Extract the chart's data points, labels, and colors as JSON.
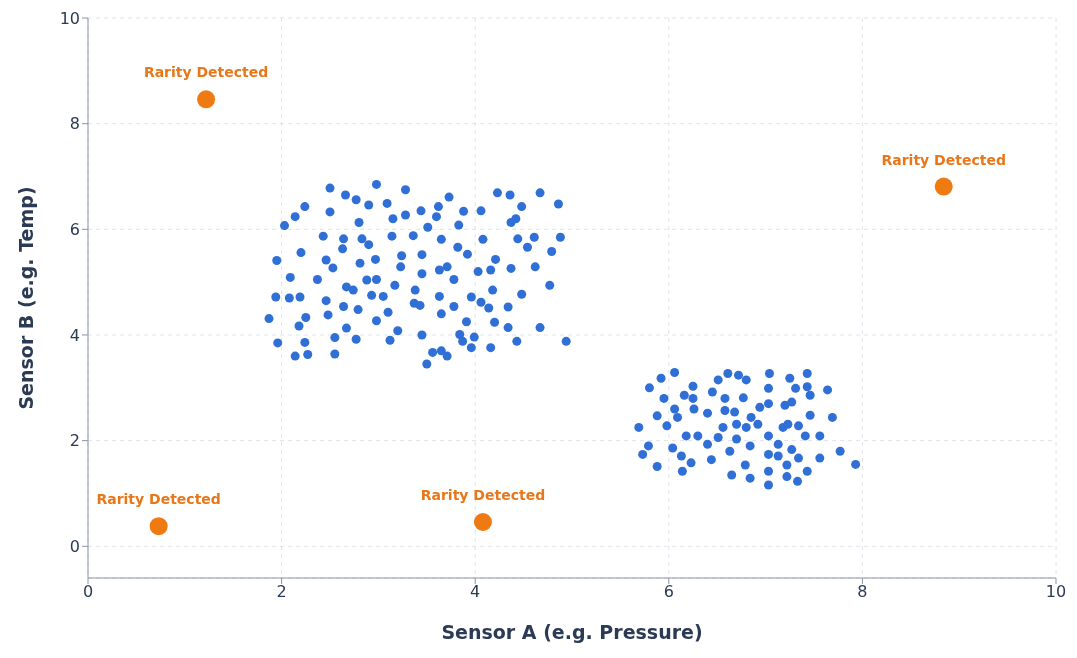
{
  "chart_data": {
    "type": "scatter",
    "xlabel": "Sensor A (e.g. Pressure)",
    "ylabel": "Sensor B (e.g. Temp)",
    "xlim": [
      0,
      10
    ],
    "ylim": [
      -0.6,
      10
    ],
    "xticks": [
      0,
      2,
      4,
      6,
      8,
      10
    ],
    "yticks": [
      0,
      2,
      4,
      6,
      8,
      10
    ],
    "grid": true,
    "marker": "circle",
    "series": [
      {
        "color": "#2f6fd6",
        "x": [
          2.5,
          2.98,
          3.28,
          2.66,
          2.77,
          2.9,
          3.09,
          2.24,
          2.14,
          2.03,
          2.5,
          2.8,
          3.15,
          3.28,
          3.44,
          3.62,
          3.73,
          3.6,
          3.51,
          3.88,
          4.06,
          3.83,
          4.23,
          4.36,
          4.67,
          4.86,
          4.48,
          4.42,
          4.37,
          2.43,
          2.64,
          2.83,
          2.9,
          3.14,
          3.36,
          3.65,
          3.82,
          3.92,
          4.08,
          4.44,
          4.61,
          4.88,
          4.54,
          4.79,
          2.2,
          1.95,
          2.63,
          2.46,
          2.53,
          2.81,
          2.97,
          3.24,
          3.45,
          3.23,
          3.45,
          3.63,
          3.71,
          4.21,
          4.37,
          4.62,
          4.03,
          4.16,
          2.09,
          2.37,
          2.88,
          2.98,
          3.17,
          3.78,
          4.77,
          2.67,
          2.74,
          3.38,
          4.18,
          1.94,
          2.08,
          2.19,
          2.46,
          2.93,
          3.05,
          3.63,
          3.96,
          4.48,
          3.37,
          3.43,
          4.06,
          4.14,
          2.64,
          2.79,
          3.1,
          3.78,
          4.34,
          1.87,
          2.25,
          2.18,
          2.48,
          2.98,
          3.65,
          3.91,
          4.2,
          4.34,
          4.67,
          2.67,
          3.2,
          1.96,
          2.24,
          2.55,
          2.77,
          3.12,
          3.45,
          3.84,
          3.99,
          3.87,
          4.16,
          4.43,
          4.94,
          3.96,
          2.14,
          2.27,
          2.55,
          3.56,
          3.65,
          3.71,
          3.5
        ],
        "values": [
          6.78,
          6.85,
          6.75,
          6.65,
          6.56,
          6.46,
          6.49,
          6.43,
          6.24,
          6.07,
          6.33,
          6.13,
          6.2,
          6.27,
          6.35,
          6.43,
          6.61,
          6.24,
          6.04,
          6.34,
          6.35,
          6.08,
          6.69,
          6.65,
          6.69,
          6.48,
          6.43,
          6.2,
          6.13,
          5.87,
          5.82,
          5.82,
          5.71,
          5.87,
          5.88,
          5.81,
          5.66,
          5.53,
          5.81,
          5.82,
          5.85,
          5.85,
          5.66,
          5.58,
          5.56,
          5.41,
          5.63,
          5.42,
          5.27,
          5.36,
          5.43,
          5.5,
          5.52,
          5.29,
          5.16,
          5.23,
          5.29,
          5.43,
          5.26,
          5.29,
          5.2,
          5.23,
          5.09,
          5.05,
          5.04,
          5.05,
          4.94,
          5.05,
          4.94,
          4.91,
          4.85,
          4.85,
          4.85,
          4.72,
          4.7,
          4.72,
          4.65,
          4.75,
          4.73,
          4.73,
          4.72,
          4.77,
          4.6,
          4.56,
          4.62,
          4.51,
          4.54,
          4.48,
          4.43,
          4.54,
          4.53,
          4.31,
          4.33,
          4.17,
          4.38,
          4.27,
          4.4,
          4.25,
          4.24,
          4.14,
          4.14,
          4.13,
          4.08,
          3.85,
          3.86,
          3.95,
          3.92,
          3.9,
          4.0,
          4.01,
          3.96,
          3.88,
          3.76,
          3.88,
          3.88,
          3.76,
          3.6,
          3.63,
          3.64,
          3.67,
          3.7,
          3.6,
          3.45
        ]
      },
      {
        "color": "#2f6fd6",
        "x": [
          6.06,
          5.92,
          5.8,
          5.95,
          6.16,
          6.25,
          6.25,
          6.06,
          5.88,
          5.98,
          6.09,
          5.69,
          5.79,
          5.73,
          5.88,
          6.04,
          6.18,
          6.26,
          6.3,
          6.13,
          6.23,
          6.14,
          6.44,
          6.4,
          6.45,
          6.51,
          6.61,
          6.72,
          6.8,
          6.58,
          6.77,
          6.4,
          6.58,
          6.68,
          6.85,
          6.94,
          6.56,
          6.7,
          6.8,
          6.92,
          6.51,
          6.7,
          6.84,
          6.63,
          6.65,
          6.79,
          6.84,
          7.04,
          7.03,
          7.03,
          7.2,
          7.27,
          7.25,
          7.31,
          7.43,
          7.43,
          7.46,
          7.64,
          7.46,
          7.69,
          7.18,
          7.23,
          7.34,
          7.03,
          7.13,
          7.41,
          7.56,
          7.03,
          7.13,
          7.27,
          7.34,
          7.03,
          7.03,
          7.22,
          7.22,
          7.33,
          7.43,
          7.56,
          7.77,
          7.93
        ],
        "values": [
          3.29,
          3.18,
          3.0,
          2.8,
          2.86,
          3.03,
          2.8,
          2.6,
          2.47,
          2.28,
          2.44,
          2.25,
          1.9,
          1.74,
          1.51,
          1.86,
          2.09,
          2.6,
          2.09,
          1.71,
          1.58,
          1.42,
          1.64,
          1.93,
          2.92,
          3.15,
          3.27,
          3.24,
          3.15,
          2.8,
          2.81,
          2.52,
          2.57,
          2.54,
          2.44,
          2.63,
          2.25,
          2.31,
          2.25,
          2.31,
          2.06,
          2.03,
          1.9,
          1.8,
          1.35,
          1.54,
          1.29,
          3.27,
          2.99,
          2.7,
          2.67,
          2.73,
          3.18,
          2.99,
          3.27,
          3.02,
          2.86,
          2.96,
          2.48,
          2.44,
          2.25,
          2.31,
          2.28,
          2.09,
          1.93,
          2.09,
          2.09,
          1.74,
          1.71,
          1.83,
          1.67,
          1.42,
          1.16,
          1.54,
          1.32,
          1.23,
          1.42,
          1.67,
          1.8,
          1.55
        ]
      },
      {
        "color": "#f07a12",
        "x": [
          1.22,
          8.84,
          0.73,
          4.08
        ],
        "values": [
          8.46,
          6.81,
          0.38,
          0.46
        ]
      }
    ],
    "annotations": [
      {
        "text": "Rarity Detected",
        "x": 1.22,
        "y": 8.46
      },
      {
        "text": "Rarity Detected",
        "x": 8.84,
        "y": 6.81
      },
      {
        "text": "Rarity Detected",
        "x": 0.73,
        "y": 0.38
      },
      {
        "text": "Rarity Detected",
        "x": 4.08,
        "y": 0.46
      }
    ]
  }
}
